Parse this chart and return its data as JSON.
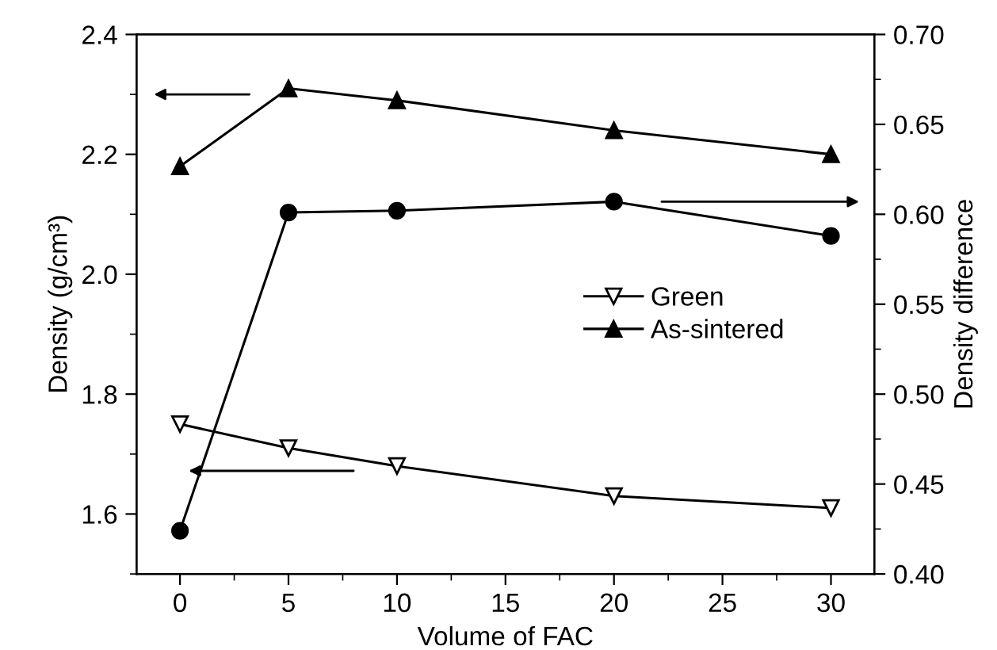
{
  "chart_data": {
    "type": "line",
    "xlabel": "Volume of FAC",
    "ylabel": "Density (g/cm³)",
    "y2label": "Density difference",
    "x": [
      0,
      5,
      10,
      20,
      30
    ],
    "series": [
      {
        "name": "Green",
        "color": "#000000",
        "marker": "triangle_down",
        "values": [
          1.75,
          1.71,
          1.68,
          1.63,
          1.61
        ]
      },
      {
        "name": "As-sintered",
        "color": "#000000",
        "marker": "triangle",
        "values": [
          2.18,
          2.31,
          2.29,
          2.24,
          2.2
        ]
      },
      {
        "color": "#000000",
        "marker": "circle",
        "axis": "y2",
        "values": [
          0.424,
          0.601,
          0.602,
          0.607,
          0.588
        ]
      }
    ],
    "xlim": [
      -2,
      32
    ],
    "xticks": [
      0,
      5,
      10,
      15,
      20,
      25,
      30
    ],
    "ylim": [
      1.5,
      2.4
    ],
    "yticks": [
      {
        "value": 1.6,
        "label": "1.6"
      },
      {
        "value": 1.8,
        "label": "1.8"
      },
      {
        "value": 2.0,
        "label": "2.0"
      },
      {
        "value": 2.2,
        "label": "2.2"
      },
      {
        "value": 2.4,
        "label": "2.4"
      }
    ],
    "y2lim": [
      0.4,
      0.7
    ],
    "y2ticks": [
      {
        "value": 0.4,
        "label": "0.40"
      },
      {
        "value": 0.45,
        "label": "0.45"
      },
      {
        "value": 0.5,
        "label": "0.50"
      },
      {
        "value": 0.55,
        "label": "0.55"
      },
      {
        "value": 0.6,
        "label": "0.60"
      },
      {
        "value": 0.65,
        "label": "0.65"
      },
      {
        "value": 0.7,
        "label": "0.70"
      }
    ],
    "legend": "right",
    "grid": false,
    "line_style": "solid"
  }
}
